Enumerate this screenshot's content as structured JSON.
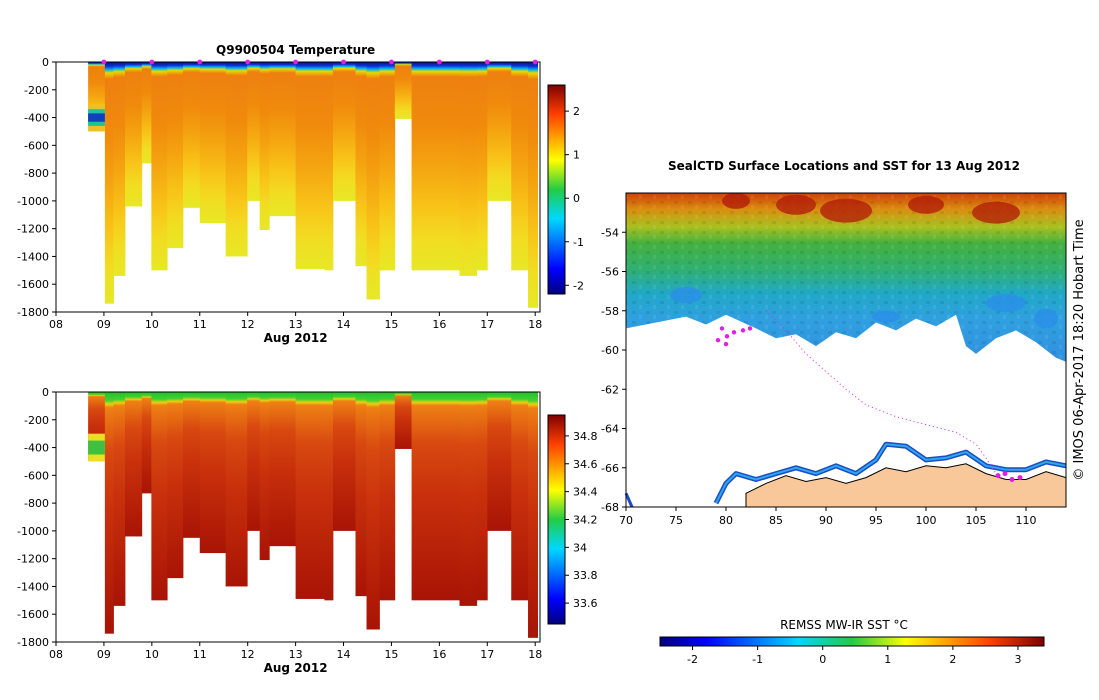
{
  "chart_data": [
    {
      "type": "heatmap",
      "title": "Q9900504  Temperature",
      "xlabel": "Aug 2012",
      "ylabel": "",
      "x_ticks": [
        "08",
        "09",
        "10",
        "11",
        "12",
        "13",
        "14",
        "15",
        "16",
        "17",
        "18"
      ],
      "x_range": [
        8,
        18.1
      ],
      "y_ticks": [
        "0",
        "-200",
        "-400",
        "-600",
        "-800",
        "-1000",
        "-1200",
        "-1400",
        "-1600",
        "-1800"
      ],
      "y_range": [
        -1800,
        0
      ],
      "colorbar_ticks": [
        "2",
        "1",
        "0",
        "-1",
        "-2"
      ],
      "colorbar_range": [
        -2.2,
        2.6
      ],
      "profiles": [
        {
          "day": 8.67,
          "max_depth": 490
        },
        {
          "day": 9.02,
          "max_depth": 1740
        },
        {
          "day": 9.2,
          "max_depth": 1540
        },
        {
          "day": 9.44,
          "max_depth": 1040
        },
        {
          "day": 9.79,
          "max_depth": 730
        },
        {
          "day": 9.99,
          "max_depth": 1500
        },
        {
          "day": 10.32,
          "max_depth": 1340
        },
        {
          "day": 10.65,
          "max_depth": 1050
        },
        {
          "day": 11.0,
          "max_depth": 1160
        },
        {
          "day": 11.54,
          "max_depth": 1400
        },
        {
          "day": 11.99,
          "max_depth": 1000
        },
        {
          "day": 12.25,
          "max_depth": 1210
        },
        {
          "day": 12.45,
          "max_depth": 1110
        },
        {
          "day": 13.0,
          "max_depth": 1490
        },
        {
          "day": 13.6,
          "max_depth": 1500
        },
        {
          "day": 13.78,
          "max_depth": 1000
        },
        {
          "day": 14.25,
          "max_depth": 1470
        },
        {
          "day": 14.48,
          "max_depth": 1710
        },
        {
          "day": 14.75,
          "max_depth": 1500
        },
        {
          "day": 15.07,
          "max_depth": 410
        },
        {
          "day": 15.42,
          "max_depth": 1500
        },
        {
          "day": 16.42,
          "max_depth": 1540
        },
        {
          "day": 16.78,
          "max_depth": 1500
        },
        {
          "day": 17.0,
          "max_depth": 1000
        },
        {
          "day": 17.5,
          "max_depth": 1500
        },
        {
          "day": 17.85,
          "max_depth": 1770
        }
      ]
    },
    {
      "type": "heatmap",
      "title": "",
      "xlabel": "Aug 2012",
      "ylabel": "",
      "x_ticks": [
        "08",
        "09",
        "10",
        "11",
        "12",
        "13",
        "14",
        "15",
        "16",
        "17",
        "18"
      ],
      "x_range": [
        8,
        18.1
      ],
      "y_ticks": [
        "0",
        "-200",
        "-400",
        "-600",
        "-800",
        "-1000",
        "-1200",
        "-1400",
        "-1600",
        "-1800"
      ],
      "y_range": [
        -1800,
        0
      ],
      "colorbar_ticks": [
        "34.8",
        "34.6",
        "34.4",
        "34.2",
        "34",
        "33.8",
        "33.6"
      ],
      "colorbar_range": [
        33.45,
        34.95
      ]
    },
    {
      "type": "heatmap",
      "title": "SealCTD Surface Locations and SST for 13 Aug 2012",
      "xlabel": "",
      "ylabel": "",
      "x_ticks": [
        "70",
        "75",
        "80",
        "85",
        "90",
        "95",
        "100",
        "105",
        "110"
      ],
      "x_range": [
        70,
        114
      ],
      "y_ticks": [
        "-54",
        "-56",
        "-58",
        "-60",
        "-62",
        "-64",
        "-66",
        "-68"
      ],
      "y_range": [
        -68,
        -52
      ],
      "colorbar_label": "REMSS MW-IR SST °C",
      "colorbar_ticks": [
        "-2",
        "-1",
        "0",
        "1",
        "2",
        "3"
      ],
      "colorbar_range": [
        -2.5,
        3.4
      ],
      "side_note": "© IMOS 06-Apr-2017 18:20 Hobart Time"
    }
  ]
}
